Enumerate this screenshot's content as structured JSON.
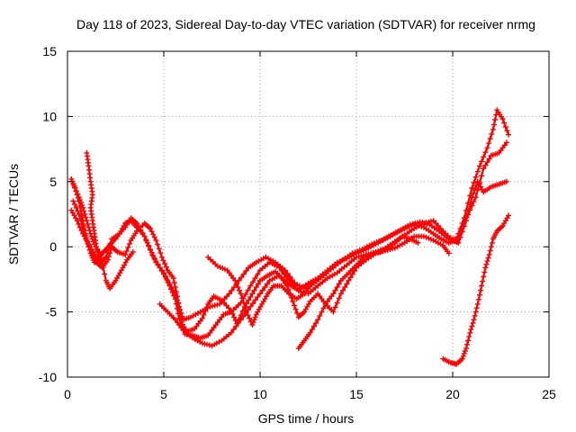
{
  "chart_data": {
    "type": "line",
    "title": "Day 118 of 2023, Sidereal Day-to-day VTEC variation (SDTVAR) for receiver nrmg",
    "xlabel": "GPS time / hours",
    "ylabel": "SDTVAR / TECUs",
    "xlim": [
      0,
      25
    ],
    "ylim": [
      -10,
      15
    ],
    "xticks": [
      0,
      5,
      10,
      15,
      20,
      25
    ],
    "yticks": [
      -10,
      -5,
      0,
      5,
      10,
      15
    ],
    "grid": true,
    "marker": "+",
    "color": "#ff0000",
    "series": [
      {
        "name": "track-1",
        "points": [
          [
            0.2,
            5.2
          ],
          [
            0.4,
            4.5
          ],
          [
            0.6,
            3.5
          ],
          [
            0.8,
            2.0
          ],
          [
            1.0,
            0.5
          ],
          [
            1.2,
            -0.5
          ],
          [
            1.4,
            -1.2
          ],
          [
            1.6,
            -1.0
          ],
          [
            1.8,
            -0.5
          ],
          [
            2.0,
            -0.2
          ],
          [
            2.3,
            0.3
          ],
          [
            2.6,
            0.8
          ],
          [
            3.0,
            1.5
          ],
          [
            3.3,
            2.2
          ],
          [
            3.6,
            1.8
          ],
          [
            4.0,
            0.8
          ],
          [
            4.3,
            -0.2
          ],
          [
            4.6,
            -1.2
          ],
          [
            5.0,
            -2.0
          ],
          [
            5.3,
            -3.0
          ],
          [
            5.6,
            -4.0
          ],
          [
            5.8,
            -5.5
          ],
          [
            6.1,
            -6.7
          ],
          [
            6.5,
            -6.8
          ],
          [
            6.9,
            -7.0
          ],
          [
            7.3,
            -6.8
          ],
          [
            7.7,
            -6.0
          ],
          [
            8.1,
            -5.2
          ],
          [
            8.5,
            -5.0
          ],
          [
            9.0,
            -4.3
          ],
          [
            9.5,
            -3.0
          ],
          [
            10.0,
            -1.8
          ],
          [
            10.5,
            -1.2
          ],
          [
            11.0,
            -1.6
          ],
          [
            11.5,
            -2.6
          ],
          [
            12.0,
            -3.4
          ],
          [
            12.5,
            -3.6
          ],
          [
            13.0,
            -3.0
          ],
          [
            13.5,
            -2.4
          ],
          [
            14.0,
            -2.0
          ],
          [
            14.5,
            -1.4
          ],
          [
            15.0,
            -0.8
          ],
          [
            15.5,
            -0.6
          ],
          [
            16.0,
            -0.4
          ],
          [
            16.5,
            -0.1
          ],
          [
            17.0,
            0.4
          ],
          [
            17.5,
            0.9
          ],
          [
            18.0,
            1.4
          ],
          [
            18.5,
            1.8
          ],
          [
            19.0,
            2.0
          ],
          [
            19.5,
            1.2
          ],
          [
            20.0,
            0.5
          ],
          [
            20.3,
            0.3
          ],
          [
            20.7,
            2.0
          ],
          [
            21.0,
            3.8
          ],
          [
            21.3,
            5.0
          ],
          [
            21.6,
            4.2
          ],
          [
            22.0,
            4.6
          ],
          [
            22.4,
            4.8
          ],
          [
            22.8,
            5.0
          ]
        ]
      },
      {
        "name": "track-2",
        "points": [
          [
            0.3,
            3.5
          ],
          [
            0.6,
            2.5
          ],
          [
            0.9,
            1.0
          ],
          [
            1.2,
            -0.2
          ],
          [
            1.5,
            -1.2
          ],
          [
            1.8,
            -1.6
          ],
          [
            2.1,
            -1.0
          ],
          [
            2.3,
            0.0
          ],
          [
            2.6,
            -0.4
          ],
          [
            3.0,
            -0.6
          ],
          [
            3.3,
            0.5
          ],
          [
            3.6,
            1.2
          ],
          [
            4.0,
            1.8
          ],
          [
            4.3,
            1.4
          ],
          [
            4.6,
            0.5
          ],
          [
            4.9,
            -0.8
          ],
          [
            5.2,
            -1.8
          ],
          [
            5.5,
            -2.4
          ],
          [
            5.7,
            -3.8
          ],
          [
            5.9,
            -5.8
          ],
          [
            6.2,
            -6.5
          ],
          [
            6.6,
            -6.3
          ],
          [
            7.0,
            -5.5
          ],
          [
            7.3,
            -4.4
          ],
          [
            7.6,
            -3.8
          ],
          [
            8.0,
            -4.1
          ],
          [
            8.5,
            -4.9
          ],
          [
            8.8,
            -5.9
          ],
          [
            9.2,
            -4.6
          ],
          [
            9.6,
            -3.6
          ],
          [
            10.0,
            -2.6
          ],
          [
            10.4,
            -2.2
          ],
          [
            10.8,
            -1.9
          ],
          [
            11.2,
            -2.5
          ],
          [
            11.6,
            -3.0
          ],
          [
            12.0,
            -3.3
          ],
          [
            12.5,
            -2.8
          ],
          [
            13.0,
            -2.4
          ],
          [
            13.5,
            -1.8
          ],
          [
            14.0,
            -1.2
          ],
          [
            14.5,
            -0.9
          ],
          [
            15.0,
            -0.5
          ],
          [
            15.5,
            -0.2
          ],
          [
            16.0,
            0.2
          ],
          [
            16.5,
            0.6
          ],
          [
            17.0,
            1.0
          ],
          [
            17.5,
            1.4
          ],
          [
            18.0,
            1.7
          ],
          [
            18.5,
            1.5
          ],
          [
            19.0,
            1.0
          ],
          [
            19.4,
            0.6
          ],
          [
            19.8,
            0.3
          ],
          [
            20.2,
            0.5
          ],
          [
            20.5,
            1.5
          ],
          [
            20.8,
            2.5
          ],
          [
            21.2,
            3.8
          ],
          [
            21.6,
            6.0
          ],
          [
            22.0,
            7.0
          ],
          [
            22.4,
            7.2
          ],
          [
            22.8,
            8.0
          ]
        ]
      },
      {
        "name": "track-3",
        "points": [
          [
            0.2,
            2.8
          ],
          [
            0.5,
            2.0
          ],
          [
            0.8,
            1.0
          ],
          [
            1.1,
            0.2
          ],
          [
            1.4,
            -0.6
          ],
          [
            1.7,
            -1.2
          ],
          [
            2.0,
            -0.8
          ],
          [
            2.3,
            0.6
          ],
          [
            2.7,
            1.0
          ],
          [
            3.0,
            1.8
          ],
          [
            3.3,
            2.0
          ],
          [
            3.6,
            1.5
          ],
          [
            4.0,
            0.8
          ],
          [
            4.4,
            -0.6
          ],
          [
            4.8,
            -1.6
          ],
          [
            5.2,
            -2.6
          ],
          [
            5.6,
            -3.6
          ],
          [
            5.8,
            -4.6
          ],
          [
            6.0,
            -5.6
          ],
          [
            6.4,
            -5.4
          ],
          [
            6.9,
            -5.0
          ],
          [
            7.4,
            -4.6
          ],
          [
            7.9,
            -4.4
          ],
          [
            8.4,
            -3.6
          ],
          [
            8.9,
            -2.6
          ],
          [
            9.4,
            -1.6
          ],
          [
            9.8,
            -1.2
          ],
          [
            10.3,
            -0.8
          ],
          [
            10.8,
            -1.2
          ],
          [
            11.3,
            -1.8
          ],
          [
            11.8,
            -2.8
          ],
          [
            12.3,
            -3.2
          ],
          [
            12.8,
            -2.8
          ],
          [
            13.3,
            -2.2
          ],
          [
            13.8,
            -1.6
          ],
          [
            14.3,
            -1.0
          ],
          [
            14.8,
            -0.5
          ],
          [
            15.3,
            -0.2
          ],
          [
            15.8,
            0.2
          ],
          [
            16.3,
            0.5
          ],
          [
            16.8,
            0.9
          ],
          [
            17.3,
            1.3
          ],
          [
            17.8,
            1.7
          ],
          [
            18.3,
            1.9
          ],
          [
            18.8,
            1.7
          ],
          [
            19.3,
            1.2
          ],
          [
            19.8,
            0.6
          ],
          [
            20.2,
            0.6
          ],
          [
            20.6,
            2.2
          ],
          [
            21.0,
            4.5
          ],
          [
            21.4,
            6.2
          ],
          [
            21.8,
            7.6
          ],
          [
            22.1,
            9.0
          ],
          [
            22.3,
            10.5
          ],
          [
            22.6,
            9.8
          ],
          [
            22.9,
            8.6
          ]
        ]
      },
      {
        "name": "track-4",
        "points": [
          [
            7.3,
            -0.8
          ],
          [
            7.8,
            -1.5
          ],
          [
            8.3,
            -1.8
          ],
          [
            8.7,
            -2.6
          ],
          [
            9.0,
            -3.6
          ],
          [
            9.3,
            -5.0
          ],
          [
            9.6,
            -6.0
          ],
          [
            9.8,
            -5.2
          ],
          [
            10.1,
            -4.4
          ],
          [
            10.4,
            -3.6
          ],
          [
            10.7,
            -3.0
          ],
          [
            11.1,
            -3.0
          ],
          [
            11.5,
            -3.6
          ],
          [
            11.9,
            -4.0
          ],
          [
            12.3,
            -3.6
          ],
          [
            12.7,
            -2.8
          ]
        ]
      },
      {
        "name": "track-5",
        "points": [
          [
            4.8,
            -4.4
          ],
          [
            5.2,
            -5.0
          ],
          [
            5.6,
            -5.6
          ],
          [
            6.0,
            -6.4
          ],
          [
            6.5,
            -7.0
          ],
          [
            7.0,
            -7.4
          ],
          [
            7.5,
            -7.6
          ],
          [
            8.0,
            -7.2
          ],
          [
            8.5,
            -6.6
          ],
          [
            9.0,
            -5.6
          ],
          [
            9.5,
            -4.6
          ],
          [
            10.0,
            -3.6
          ],
          [
            10.5,
            -2.6
          ],
          [
            11.0,
            -2.2
          ],
          [
            11.4,
            -3.0
          ],
          [
            11.7,
            -4.2
          ],
          [
            12.0,
            -5.4
          ],
          [
            12.3,
            -5.0
          ],
          [
            12.6,
            -4.2
          ],
          [
            13.0,
            -3.6
          ],
          [
            13.4,
            -4.4
          ],
          [
            13.8,
            -5.0
          ],
          [
            14.2,
            -3.6
          ],
          [
            14.6,
            -2.6
          ],
          [
            15.0,
            -1.6
          ],
          [
            15.5,
            -1.0
          ],
          [
            16.0,
            -0.5
          ],
          [
            16.5,
            -0.3
          ],
          [
            17.0,
            -0.1
          ],
          [
            17.5,
            0.3
          ],
          [
            18.0,
            0.8
          ],
          [
            18.5,
            0.8
          ],
          [
            19.0,
            0.5
          ],
          [
            19.5,
            0.1
          ],
          [
            19.8,
            -0.5
          ]
        ]
      },
      {
        "name": "track-6",
        "points": [
          [
            12.0,
            -7.8
          ],
          [
            12.3,
            -7.2
          ],
          [
            12.6,
            -6.6
          ],
          [
            13.0,
            -5.6
          ],
          [
            13.4,
            -4.4
          ],
          [
            13.8,
            -3.6
          ],
          [
            14.2,
            -2.6
          ],
          [
            14.6,
            -2.0
          ],
          [
            15.0,
            -1.4
          ],
          [
            15.4,
            -0.8
          ],
          [
            15.8,
            -0.6
          ],
          [
            16.2,
            -0.4
          ],
          [
            16.6,
            -0.2
          ],
          [
            17.0,
            0.3
          ],
          [
            17.4,
            0.8
          ],
          [
            17.8,
            0.6
          ],
          [
            18.2,
            0.3
          ]
        ]
      },
      {
        "name": "track-7",
        "points": [
          [
            19.5,
            -8.6
          ],
          [
            19.9,
            -8.9
          ],
          [
            20.2,
            -9.0
          ],
          [
            20.5,
            -8.6
          ],
          [
            20.7,
            -7.8
          ],
          [
            20.9,
            -6.6
          ],
          [
            21.1,
            -5.6
          ],
          [
            21.3,
            -4.4
          ],
          [
            21.5,
            -3.0
          ],
          [
            21.7,
            -1.6
          ],
          [
            21.9,
            -0.6
          ],
          [
            22.1,
            0.6
          ],
          [
            22.3,
            1.2
          ],
          [
            22.6,
            1.6
          ],
          [
            22.9,
            2.4
          ]
        ]
      },
      {
        "name": "track-8",
        "points": [
          [
            1.0,
            7.2
          ],
          [
            1.1,
            6.2
          ],
          [
            1.2,
            5.0
          ],
          [
            1.3,
            4.0
          ],
          [
            1.2,
            3.0
          ],
          [
            1.3,
            2.0
          ],
          [
            1.4,
            1.0
          ],
          [
            1.5,
            0.0
          ],
          [
            1.6,
            -0.6
          ]
        ]
      },
      {
        "name": "track-9",
        "points": [
          [
            0.3,
            4.8
          ],
          [
            0.6,
            3.8
          ],
          [
            0.8,
            3.0
          ],
          [
            1.0,
            2.0
          ],
          [
            1.2,
            1.0
          ],
          [
            1.4,
            0.2
          ],
          [
            1.7,
            -0.6
          ],
          [
            2.0,
            -2.6
          ],
          [
            2.2,
            -3.2
          ],
          [
            2.5,
            -2.6
          ],
          [
            2.8,
            -1.8
          ],
          [
            3.1,
            -1.0
          ],
          [
            3.4,
            -0.4
          ]
        ]
      }
    ]
  }
}
